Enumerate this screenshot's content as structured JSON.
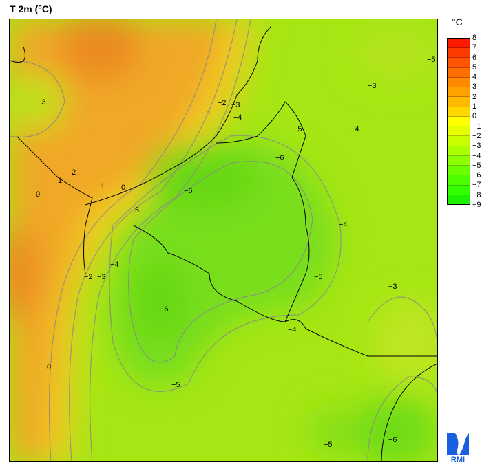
{
  "title": "T 2m (°C)",
  "legend": {
    "unit": "°C",
    "ticks": [
      "8",
      "7",
      "6",
      "5",
      "4",
      "3",
      "2",
      "1",
      "0",
      "−1",
      "−2",
      "−3",
      "−4",
      "−5",
      "−6",
      "−7",
      "−8",
      "−9"
    ],
    "colors": [
      "#ff1a00",
      "#ff3a00",
      "#ff5500",
      "#ff6e00",
      "#ff8a00",
      "#ffa200",
      "#ffba00",
      "#ffd800",
      "#ffff00",
      "#e6ff00",
      "#c8ff00",
      "#aaff00",
      "#8cff00",
      "#6cff00",
      "#4cff00",
      "#34ff00",
      "#1cf000"
    ]
  },
  "map": {
    "contour_labels": [
      "−3",
      "2",
      "1",
      "0",
      "1",
      "0",
      "−1",
      "−2",
      "−3",
      "−4",
      "−5",
      "−6",
      "−6",
      "5",
      "−2",
      "−3",
      "−4",
      "−6",
      "−5",
      "−4",
      "−4",
      "−5",
      "−3",
      "−4",
      "0",
      "−5",
      "−5",
      "−6",
      "−3"
    ]
  },
  "logo": {
    "text": "RMI",
    "color": "#1a5fe0"
  }
}
